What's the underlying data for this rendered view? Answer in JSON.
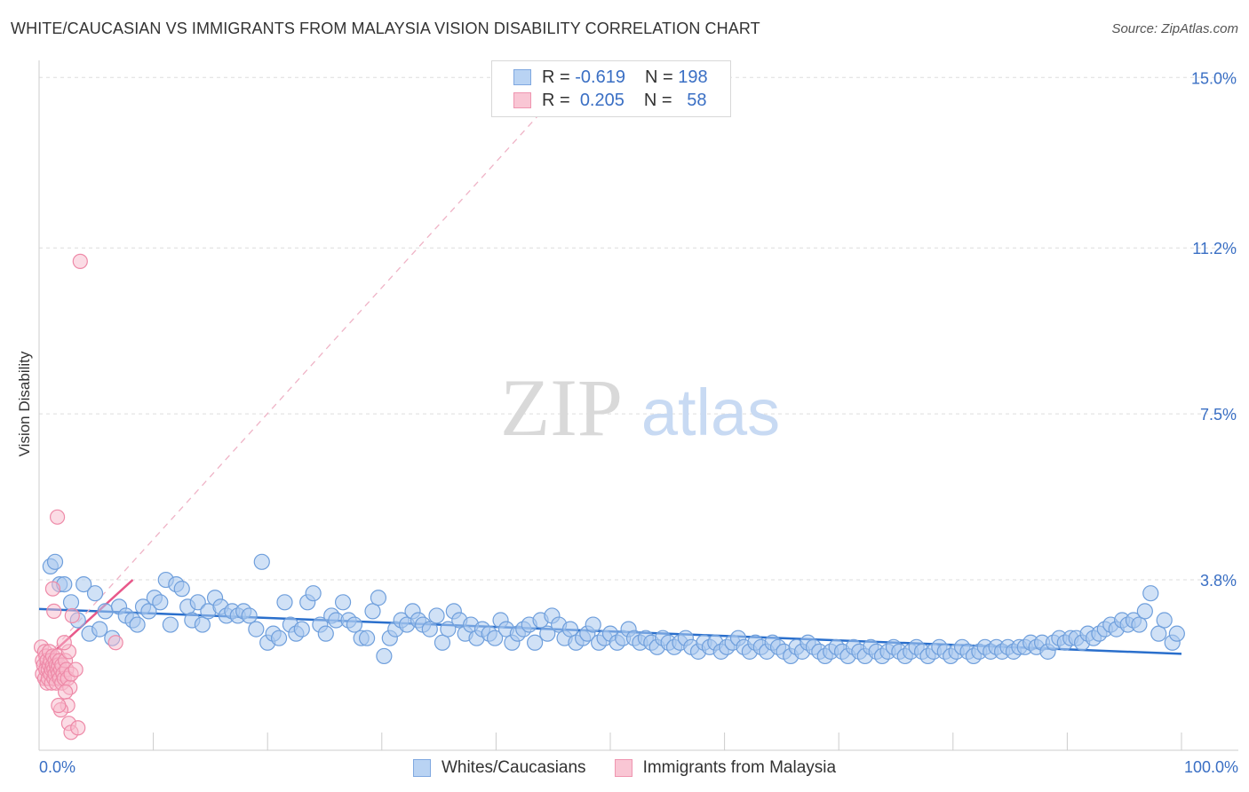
{
  "header": {
    "title": "WHITE/CAUCASIAN VS IMMIGRANTS FROM MALAYSIA VISION DISABILITY CORRELATION CHART",
    "source": "Source: ZipAtlas.com"
  },
  "watermark": {
    "zip": "ZIP",
    "atlas": "atlas"
  },
  "legend_top": {
    "rows": [
      {
        "r_label": "R =",
        "r_value": "-0.619",
        "n_label": "N =",
        "n_value": "198"
      },
      {
        "r_label": "R =",
        "r_value": "0.205",
        "n_label": "N =",
        "n_value": "58"
      }
    ]
  },
  "colors": {
    "blue_fill": "#a9c8ef",
    "blue_stroke": "#6f9fdc",
    "blue_line": "#2a6fcc",
    "pink_fill": "#f7b9cb",
    "pink_stroke": "#ee8aa8",
    "pink_line": "#e8588a",
    "grid": "#dddddd",
    "axis_text": "#3a6fc4"
  },
  "chart_data": {
    "type": "scatter",
    "title": "WHITE/CAUCASIAN VS IMMIGRANTS FROM MALAYSIA VISION DISABILITY CORRELATION CHART",
    "xlabel": "",
    "ylabel": "Vision Disability",
    "xlim": [
      0,
      100
    ],
    "ylim": [
      0,
      15.5
    ],
    "x_tick_labels": [
      "0.0%",
      "100.0%"
    ],
    "y_ticks": [
      3.8,
      7.5,
      11.2,
      15.0
    ],
    "y_tick_labels": [
      "3.8%",
      "7.5%",
      "11.2%",
      "15.0%"
    ],
    "legend_position": "top-center",
    "series": [
      {
        "name": "Whites/Caucasians",
        "color": "#a9c8ef",
        "trend": {
          "x": [
            0,
            100
          ],
          "y": [
            3.15,
            2.15
          ],
          "style": "solid"
        },
        "points": [
          [
            1,
            4.1
          ],
          [
            1.4,
            4.2
          ],
          [
            1.8,
            3.7
          ],
          [
            2.2,
            3.7
          ],
          [
            2.8,
            3.3
          ],
          [
            3.4,
            2.9
          ],
          [
            3.9,
            3.7
          ],
          [
            4.4,
            2.6
          ],
          [
            4.9,
            3.5
          ],
          [
            5.3,
            2.7
          ],
          [
            5.8,
            3.1
          ],
          [
            6.4,
            2.5
          ],
          [
            7,
            3.2
          ],
          [
            7.6,
            3.0
          ],
          [
            8.2,
            2.9
          ],
          [
            8.6,
            2.8
          ],
          [
            9.1,
            3.2
          ],
          [
            9.6,
            3.1
          ],
          [
            10.1,
            3.4
          ],
          [
            10.6,
            3.3
          ],
          [
            11.1,
            3.8
          ],
          [
            11.5,
            2.8
          ],
          [
            12,
            3.7
          ],
          [
            12.5,
            3.6
          ],
          [
            13,
            3.2
          ],
          [
            13.4,
            2.9
          ],
          [
            13.9,
            3.3
          ],
          [
            14.3,
            2.8
          ],
          [
            14.8,
            3.1
          ],
          [
            15.4,
            3.4
          ],
          [
            15.9,
            3.2
          ],
          [
            16.4,
            3.0
          ],
          [
            16.9,
            3.1
          ],
          [
            17.4,
            3.0
          ],
          [
            17.9,
            3.1
          ],
          [
            18.4,
            3.0
          ],
          [
            19,
            2.7
          ],
          [
            19.5,
            4.2
          ],
          [
            20,
            2.4
          ],
          [
            20.5,
            2.6
          ],
          [
            21,
            2.5
          ],
          [
            21.5,
            3.3
          ],
          [
            22,
            2.8
          ],
          [
            22.5,
            2.6
          ],
          [
            23,
            2.7
          ],
          [
            23.5,
            3.3
          ],
          [
            24,
            3.5
          ],
          [
            24.6,
            2.8
          ],
          [
            25.1,
            2.6
          ],
          [
            25.6,
            3.0
          ],
          [
            26,
            2.9
          ],
          [
            26.6,
            3.3
          ],
          [
            27.1,
            2.9
          ],
          [
            27.6,
            2.8
          ],
          [
            28.2,
            2.5
          ],
          [
            28.7,
            2.5
          ],
          [
            29.2,
            3.1
          ],
          [
            29.7,
            3.4
          ],
          [
            30.2,
            2.1
          ],
          [
            30.7,
            2.5
          ],
          [
            31.2,
            2.7
          ],
          [
            31.7,
            2.9
          ],
          [
            32.2,
            2.8
          ],
          [
            32.7,
            3.1
          ],
          [
            33.2,
            2.9
          ],
          [
            33.6,
            2.8
          ],
          [
            34.2,
            2.7
          ],
          [
            34.8,
            3.0
          ],
          [
            35.3,
            2.4
          ],
          [
            35.8,
            2.7
          ],
          [
            36.3,
            3.1
          ],
          [
            36.8,
            2.9
          ],
          [
            37.3,
            2.6
          ],
          [
            37.8,
            2.8
          ],
          [
            38.3,
            2.5
          ],
          [
            38.8,
            2.7
          ],
          [
            39.4,
            2.6
          ],
          [
            39.9,
            2.5
          ],
          [
            40.4,
            2.9
          ],
          [
            40.9,
            2.7
          ],
          [
            41.4,
            2.4
          ],
          [
            41.9,
            2.6
          ],
          [
            42.4,
            2.7
          ],
          [
            42.9,
            2.8
          ],
          [
            43.4,
            2.4
          ],
          [
            43.9,
            2.9
          ],
          [
            44.5,
            2.6
          ],
          [
            44.9,
            3.0
          ],
          [
            45.5,
            2.8
          ],
          [
            46,
            2.5
          ],
          [
            46.5,
            2.7
          ],
          [
            47,
            2.4
          ],
          [
            47.6,
            2.5
          ],
          [
            48,
            2.6
          ],
          [
            48.5,
            2.8
          ],
          [
            49,
            2.4
          ],
          [
            49.5,
            2.5
          ],
          [
            50,
            2.6
          ],
          [
            50.6,
            2.4
          ],
          [
            51.1,
            2.5
          ],
          [
            51.6,
            2.7
          ],
          [
            52.1,
            2.5
          ],
          [
            52.6,
            2.4
          ],
          [
            53.1,
            2.5
          ],
          [
            53.6,
            2.4
          ],
          [
            54.1,
            2.3
          ],
          [
            54.6,
            2.5
          ],
          [
            55.1,
            2.4
          ],
          [
            55.6,
            2.3
          ],
          [
            56.1,
            2.4
          ],
          [
            56.6,
            2.5
          ],
          [
            57.1,
            2.3
          ],
          [
            57.7,
            2.2
          ],
          [
            58.2,
            2.4
          ],
          [
            58.7,
            2.3
          ],
          [
            59.2,
            2.4
          ],
          [
            59.7,
            2.2
          ],
          [
            60.2,
            2.3
          ],
          [
            60.7,
            2.4
          ],
          [
            61.2,
            2.5
          ],
          [
            61.7,
            2.3
          ],
          [
            62.2,
            2.2
          ],
          [
            62.7,
            2.4
          ],
          [
            63.2,
            2.3
          ],
          [
            63.7,
            2.2
          ],
          [
            64.2,
            2.4
          ],
          [
            64.7,
            2.3
          ],
          [
            65.2,
            2.2
          ],
          [
            65.8,
            2.1
          ],
          [
            66.3,
            2.3
          ],
          [
            66.8,
            2.2
          ],
          [
            67.3,
            2.4
          ],
          [
            67.8,
            2.3
          ],
          [
            68.3,
            2.2
          ],
          [
            68.8,
            2.1
          ],
          [
            69.3,
            2.2
          ],
          [
            69.8,
            2.3
          ],
          [
            70.3,
            2.2
          ],
          [
            70.8,
            2.1
          ],
          [
            71.3,
            2.3
          ],
          [
            71.8,
            2.2
          ],
          [
            72.3,
            2.1
          ],
          [
            72.8,
            2.3
          ],
          [
            73.3,
            2.2
          ],
          [
            73.8,
            2.1
          ],
          [
            74.3,
            2.2
          ],
          [
            74.8,
            2.3
          ],
          [
            75.3,
            2.2
          ],
          [
            75.8,
            2.1
          ],
          [
            76.3,
            2.2
          ],
          [
            76.8,
            2.3
          ],
          [
            77.3,
            2.2
          ],
          [
            77.8,
            2.1
          ],
          [
            78.3,
            2.2
          ],
          [
            78.8,
            2.3
          ],
          [
            79.3,
            2.2
          ],
          [
            79.8,
            2.1
          ],
          [
            80.3,
            2.2
          ],
          [
            80.8,
            2.3
          ],
          [
            81.3,
            2.2
          ],
          [
            81.8,
            2.1
          ],
          [
            82.3,
            2.2
          ],
          [
            82.8,
            2.3
          ],
          [
            83.3,
            2.2
          ],
          [
            83.8,
            2.3
          ],
          [
            84.3,
            2.2
          ],
          [
            84.8,
            2.3
          ],
          [
            85.3,
            2.2
          ],
          [
            85.8,
            2.3
          ],
          [
            86.3,
            2.3
          ],
          [
            86.8,
            2.4
          ],
          [
            87.3,
            2.3
          ],
          [
            87.8,
            2.4
          ],
          [
            88.3,
            2.2
          ],
          [
            88.8,
            2.4
          ],
          [
            89.3,
            2.5
          ],
          [
            89.8,
            2.4
          ],
          [
            90.3,
            2.5
          ],
          [
            90.8,
            2.5
          ],
          [
            91.3,
            2.4
          ],
          [
            91.8,
            2.6
          ],
          [
            92.3,
            2.5
          ],
          [
            92.8,
            2.6
          ],
          [
            93.3,
            2.7
          ],
          [
            93.8,
            2.8
          ],
          [
            94.3,
            2.7
          ],
          [
            94.8,
            2.9
          ],
          [
            95.3,
            2.8
          ],
          [
            95.8,
            2.9
          ],
          [
            96.3,
            2.8
          ],
          [
            96.8,
            3.1
          ],
          [
            97.3,
            3.5
          ],
          [
            98.0,
            2.6
          ],
          [
            98.5,
            2.9
          ],
          [
            99.2,
            2.4
          ],
          [
            99.6,
            2.6
          ]
        ]
      },
      {
        "name": "Immigrants from Malaysia",
        "color": "#f7b9cb",
        "trend": {
          "x": [
            0,
            8.2
          ],
          "y": [
            1.9,
            3.8
          ],
          "style": "solid",
          "extended": {
            "x": [
              0,
              46
            ],
            "y": [
              1.9,
              14.8
            ],
            "style": "dashed"
          }
        },
        "points": [
          [
            0.2,
            2.3
          ],
          [
            0.3,
            2.0
          ],
          [
            0.3,
            1.7
          ],
          [
            0.4,
            1.9
          ],
          [
            0.5,
            2.2
          ],
          [
            0.5,
            1.6
          ],
          [
            0.6,
            1.8
          ],
          [
            0.6,
            2.1
          ],
          [
            0.7,
            1.5
          ],
          [
            0.7,
            2.0
          ],
          [
            0.8,
            1.8
          ],
          [
            0.8,
            1.6
          ],
          [
            0.9,
            2.2
          ],
          [
            0.9,
            1.9
          ],
          [
            1.0,
            1.7
          ],
          [
            1.0,
            2.0
          ],
          [
            1.1,
            1.8
          ],
          [
            1.1,
            1.5
          ],
          [
            1.2,
            1.9
          ],
          [
            1.2,
            2.1
          ],
          [
            1.3,
            1.6
          ],
          [
            1.3,
            1.8
          ],
          [
            1.4,
            1.7
          ],
          [
            1.4,
            2.0
          ],
          [
            1.5,
            1.9
          ],
          [
            1.5,
            1.5
          ],
          [
            1.6,
            1.8
          ],
          [
            1.6,
            2.1
          ],
          [
            1.7,
            1.7
          ],
          [
            1.7,
            1.9
          ],
          [
            1.8,
            2.0
          ],
          [
            1.8,
            1.6
          ],
          [
            1.9,
            1.8
          ],
          [
            2.0,
            1.9
          ],
          [
            2.0,
            1.5
          ],
          [
            2.1,
            1.7
          ],
          [
            2.2,
            1.6
          ],
          [
            2.3,
            2.0
          ],
          [
            2.4,
            1.8
          ],
          [
            2.5,
            1.6
          ],
          [
            2.6,
            2.2
          ],
          [
            2.7,
            1.4
          ],
          [
            2.8,
            1.7
          ],
          [
            2.9,
            3.0
          ],
          [
            3.2,
            1.8
          ],
          [
            3.6,
            10.9
          ],
          [
            1.6,
            5.2
          ],
          [
            1.2,
            3.6
          ],
          [
            1.3,
            3.1
          ],
          [
            2.3,
            1.3
          ],
          [
            2.5,
            1.0
          ],
          [
            2.6,
            0.6
          ],
          [
            2.8,
            0.4
          ],
          [
            3.4,
            0.5
          ],
          [
            6.7,
            2.4
          ],
          [
            1.9,
            0.9
          ],
          [
            1.7,
            1.0
          ],
          [
            2.2,
            2.4
          ]
        ]
      }
    ]
  },
  "legend_bottom": {
    "items": [
      {
        "label": "Whites/Caucasians"
      },
      {
        "label": "Immigrants from Malaysia"
      }
    ]
  }
}
